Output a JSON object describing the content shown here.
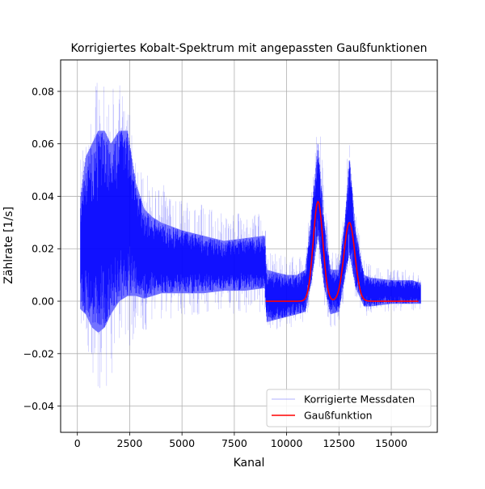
{
  "chart_data": {
    "type": "line",
    "title": "Korrigiertes Kobalt-Spektrum mit angepassten Gaußfunktionen",
    "xlabel": "Kanal",
    "ylabel": "Zählrate [1/s]",
    "xlim": [
      -800,
      17200
    ],
    "ylim": [
      -0.05,
      0.092
    ],
    "grid": true,
    "legend_position": "bottom-right",
    "x_ticks": [
      0,
      2500,
      5000,
      7500,
      10000,
      12500,
      15000
    ],
    "x_tick_labels": [
      "0",
      "2500",
      "5000",
      "7500",
      "10000",
      "12500",
      "15000"
    ],
    "y_ticks": [
      -0.04,
      -0.02,
      0.0,
      0.02,
      0.04,
      0.06,
      0.08
    ],
    "y_tick_labels": [
      "−0.04",
      "−0.02",
      "0.00",
      "0.02",
      "0.04",
      "0.06",
      "0.08"
    ],
    "series": [
      {
        "name": "Korrigierte Messdaten",
        "color": "#0000ff",
        "style": "dense noisy vertical line band",
        "envelope": {
          "x": [
            150,
            400,
            700,
            1000,
            1300,
            1600,
            2000,
            2400,
            2800,
            3200,
            3600,
            4000,
            5000,
            6000,
            7000,
            8000,
            8950,
            9050,
            9500,
            10000,
            10500,
            10900,
            11200,
            11500,
            11800,
            12100,
            12500,
            12800,
            13000,
            13300,
            13700,
            14000,
            15000,
            16000,
            16400
          ],
          "center": [
            0.018,
            0.025,
            0.028,
            0.03,
            0.03,
            0.028,
            0.03,
            0.032,
            0.022,
            0.018,
            0.017,
            0.016,
            0.015,
            0.014,
            0.013,
            0.014,
            0.015,
            0.004,
            0.003,
            0.002,
            0.002,
            0.004,
            0.02,
            0.04,
            0.018,
            0.004,
            0.005,
            0.02,
            0.03,
            0.015,
            0.004,
            0.004,
            0.004,
            0.004,
            0.003
          ],
          "lower": [
            -0.003,
            -0.005,
            -0.01,
            -0.012,
            -0.01,
            -0.005,
            0.0,
            0.002,
            0.002,
            0.001,
            0.002,
            0.003,
            0.003,
            0.003,
            0.004,
            0.004,
            0.005,
            -0.008,
            -0.007,
            -0.006,
            -0.005,
            -0.004,
            0.008,
            0.025,
            0.005,
            -0.005,
            -0.004,
            0.01,
            0.018,
            0.005,
            -0.002,
            -0.002,
            -0.001,
            -0.001,
            -0.001
          ],
          "upper": [
            0.04,
            0.055,
            0.06,
            0.065,
            0.065,
            0.06,
            0.065,
            0.065,
            0.045,
            0.035,
            0.032,
            0.03,
            0.027,
            0.025,
            0.023,
            0.024,
            0.025,
            0.012,
            0.011,
            0.01,
            0.01,
            0.012,
            0.035,
            0.06,
            0.03,
            0.012,
            0.012,
            0.032,
            0.055,
            0.027,
            0.01,
            0.009,
            0.008,
            0.008,
            0.007
          ],
          "spike_min": [
            -0.013,
            -0.02,
            -0.035,
            -0.043,
            -0.04,
            -0.03,
            -0.015,
            -0.025,
            -0.01,
            -0.012,
            -0.01,
            -0.008,
            -0.006,
            -0.005,
            -0.005,
            -0.005,
            -0.004,
            -0.012,
            -0.011,
            -0.01,
            -0.01,
            -0.009,
            0.0,
            0.015,
            -0.002,
            -0.01,
            -0.009,
            0.004,
            0.01,
            -0.002,
            -0.006,
            -0.005,
            -0.004,
            -0.004,
            -0.003
          ],
          "spike_max": [
            0.055,
            0.07,
            0.078,
            0.085,
            0.085,
            0.08,
            0.085,
            0.079,
            0.058,
            0.052,
            0.048,
            0.045,
            0.04,
            0.037,
            0.034,
            0.034,
            0.036,
            0.02,
            0.018,
            0.017,
            0.017,
            0.018,
            0.045,
            0.085,
            0.04,
            0.02,
            0.02,
            0.042,
            0.067,
            0.035,
            0.016,
            0.014,
            0.012,
            0.012,
            0.01
          ]
        }
      },
      {
        "name": "Gaußfunktion",
        "color": "#ff0000",
        "x_range": [
          9000,
          16300
        ],
        "baseline": 0.0,
        "gaussians": [
          {
            "amplitude": 0.038,
            "mean": 11500,
            "sigma": 230
          },
          {
            "amplitude": 0.03,
            "mean": 13000,
            "sigma": 260
          }
        ]
      }
    ],
    "legend": [
      "Korrigierte Messdaten",
      "Gaußfunktion"
    ]
  }
}
